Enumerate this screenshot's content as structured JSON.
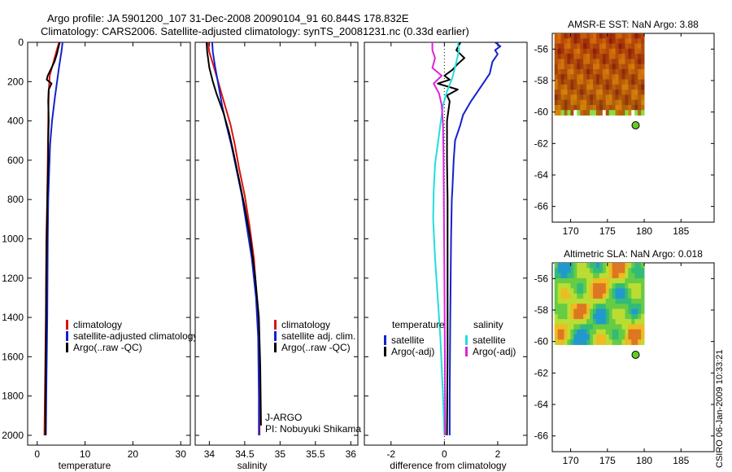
{
  "header": {
    "title_line1": "Argo profile: JA 5901200_107 31-Dec-2008 20090104_91 60.844S 178.832E",
    "title_line2": "Climatology: CARS2006. Satellite-adjusted climatology: synTS_20081231.nc (0.33d earlier)"
  },
  "side_label": "CSIRO 06-Jan-2009 10:33:21",
  "colors": {
    "climatology": "#dd1111",
    "satellite": "#1122cc",
    "argo": "#000000",
    "sal_satellite": "#22dddd",
    "sal_argo": "#dd22dd",
    "float_marker": "#66cc22"
  },
  "chart_data": [
    {
      "id": "temperature",
      "type": "line",
      "xlabel": "temperature",
      "ylabel": "",
      "xlim": [
        -2,
        32
      ],
      "ylim": [
        2050,
        0
      ],
      "xticks": [
        0,
        10,
        20,
        30
      ],
      "yticks": [
        0,
        200,
        400,
        600,
        800,
        1000,
        1200,
        1400,
        1600,
        1800,
        2000
      ],
      "series": [
        {
          "name": "climatology",
          "color": "#dd1111",
          "x": [
            4.6,
            4.2,
            3.4,
            2.6,
            2.4,
            2.3,
            2.2,
            2.1,
            1.9,
            1.8,
            1.6,
            1.5
          ],
          "y": [
            0,
            30,
            100,
            170,
            250,
            400,
            600,
            800,
            1000,
            1400,
            1800,
            2000
          ]
        },
        {
          "name": "satellite-adjusted climatology",
          "color": "#1122cc",
          "x": [
            5.3,
            5.1,
            4.6,
            3.7,
            3.1,
            2.7,
            2.5,
            2.3,
            2.2,
            2.1,
            1.9,
            1.8
          ],
          "y": [
            0,
            40,
            120,
            280,
            400,
            520,
            650,
            800,
            1000,
            1400,
            1800,
            2000
          ]
        },
        {
          "name": "Argo(..raw -QC)",
          "color": "#000000",
          "x": [
            4.7,
            4.4,
            4.1,
            3.6,
            2.2,
            2.0,
            3.0,
            2.4,
            2.3,
            2.4,
            2.3,
            2.3,
            2.2,
            2.1,
            2.0,
            1.9,
            1.8,
            1.7,
            1.7
          ],
          "y": [
            0,
            30,
            60,
            100,
            170,
            190,
            210,
            240,
            300,
            400,
            500,
            600,
            700,
            800,
            1000,
            1200,
            1500,
            1800,
            2000
          ]
        }
      ],
      "legend": [
        "climatology",
        "satellite-adjusted climatology",
        "Argo(..raw -QC)"
      ],
      "legend_position": "lower-right"
    },
    {
      "id": "salinity",
      "type": "line",
      "xlabel": "salinity",
      "ylabel": "",
      "xlim": [
        33.8,
        36.1
      ],
      "ylim": [
        2050,
        0
      ],
      "xticks": [
        34,
        34.5,
        35,
        35.5,
        36
      ],
      "xtick_labels": [
        "34",
        "34.5",
        "35",
        "35.5",
        "36"
      ],
      "series": [
        {
          "name": "climatology",
          "color": "#dd1111",
          "x": [
            33.98,
            34.0,
            34.06,
            34.14,
            34.22,
            34.3,
            34.36,
            34.42,
            34.5,
            34.57,
            34.63,
            34.67,
            34.7,
            34.71,
            34.71
          ],
          "y": [
            0,
            50,
            120,
            220,
            320,
            420,
            520,
            640,
            780,
            940,
            1100,
            1300,
            1500,
            1800,
            2000
          ]
        },
        {
          "name": "satellite adj. clim.",
          "color": "#1122cc",
          "x": [
            34.04,
            34.05,
            34.08,
            34.13,
            34.18,
            34.24,
            34.31,
            34.38,
            34.46,
            34.53,
            34.6,
            34.66,
            34.69,
            34.7,
            34.7
          ],
          "y": [
            0,
            50,
            120,
            220,
            320,
            420,
            520,
            640,
            780,
            940,
            1100,
            1300,
            1500,
            1800,
            2000
          ]
        },
        {
          "name": "Argo(..raw -QC)",
          "color": "#000000",
          "x": [
            33.96,
            33.97,
            34.0,
            34.05,
            34.1,
            34.2,
            34.28,
            34.34,
            34.41,
            34.5,
            34.58,
            34.65,
            34.7,
            34.72,
            34.73
          ],
          "y": [
            0,
            50,
            130,
            200,
            260,
            360,
            460,
            560,
            680,
            840,
            1000,
            1200,
            1400,
            1650,
            1950
          ]
        }
      ],
      "legend": [
        "climatology",
        "satellite adj. clim.",
        "Argo(..raw -QC)"
      ],
      "legend_position": "lower-right",
      "annotations": [
        "J-ARGO",
        "PI: Nobuyuki Shikama"
      ]
    },
    {
      "id": "difference",
      "type": "line",
      "xlabel": "difference from climatology",
      "ylabel": "",
      "xlim": [
        -3,
        3.1
      ],
      "ylim": [
        2050,
        0
      ],
      "xticks": [
        -2,
        0,
        2
      ],
      "series": [
        {
          "name": "temperature satellite",
          "color": "#1122cc",
          "x": [
            1.9,
            2.1,
            1.9,
            2.0,
            1.8,
            1.7,
            1.5,
            1.2,
            1.0,
            0.7,
            0.6,
            0.4,
            0.35,
            0.3,
            0.28,
            0.25,
            0.22,
            0.2,
            0.2
          ],
          "y": [
            0,
            20,
            40,
            60,
            100,
            160,
            200,
            260,
            300,
            370,
            420,
            500,
            600,
            750,
            800,
            1000,
            1400,
            1800,
            2000
          ]
        },
        {
          "name": "temperature Argo(-adj)",
          "color": "#000000",
          "x": [
            0.6,
            0.45,
            0.75,
            0.5,
            0.3,
            0.0,
            0.2,
            -0.25,
            0.5,
            0.1,
            0.2,
            0.1,
            0.1,
            0.12,
            0.12,
            0.12,
            0.1
          ],
          "y": [
            0,
            40,
            80,
            110,
            140,
            170,
            190,
            210,
            240,
            270,
            300,
            400,
            600,
            800,
            1200,
            1600,
            2000
          ]
        },
        {
          "name": "salinity satellite",
          "color": "#22dddd",
          "x": [
            0.5,
            0.55,
            0.45,
            0.3,
            0.1,
            -0.05,
            -0.15,
            -0.25,
            -0.35,
            -0.4,
            -0.42,
            -0.35,
            -0.25,
            -0.15,
            -0.05,
            0.0
          ],
          "y": [
            0,
            40,
            100,
            180,
            250,
            320,
            420,
            520,
            620,
            760,
            900,
            1100,
            1300,
            1500,
            1800,
            2000
          ]
        },
        {
          "name": "salinity Argo(-adj)",
          "color": "#dd22dd",
          "x": [
            -0.45,
            -0.45,
            -0.35,
            -0.45,
            -0.1,
            -0.4,
            -0.2,
            -0.1,
            -0.05,
            -0.03,
            -0.02,
            0.0,
            0.02,
            0.03
          ],
          "y": [
            0,
            40,
            80,
            130,
            170,
            210,
            260,
            320,
            420,
            600,
            800,
            1200,
            1600,
            2000
          ]
        }
      ],
      "legend_headers": [
        "temperature",
        "salinity"
      ],
      "legend": [
        {
          "label": "satellite",
          "color": "#1122cc"
        },
        {
          "label": "Argo(-adj)",
          "color": "#000000"
        },
        {
          "label": "satellite",
          "color": "#22dddd"
        },
        {
          "label": "Argo(-adj)",
          "color": "#dd22dd"
        }
      ],
      "reference_line": {
        "x": 0,
        "style": "dotted"
      }
    },
    {
      "id": "sst_map",
      "type": "heatmap",
      "title": "AMSR-E SST: NaN Argo: 3.88",
      "xlim": [
        167.5,
        189.5
      ],
      "ylim": [
        -67,
        -55
      ],
      "xticks": [
        170,
        175,
        180,
        185
      ],
      "yticks": [
        -56,
        -58,
        -60,
        -62,
        -64,
        -66
      ],
      "data_extent": {
        "lon": [
          167.8,
          180.0
        ],
        "lat": [
          -60.2,
          -55.0
        ]
      },
      "float_position": {
        "lon": 178.832,
        "lat": -60.844
      }
    },
    {
      "id": "sla_map",
      "type": "heatmap",
      "title": "Altimetric SLA: NaN Argo: 0.018",
      "xlim": [
        167.5,
        189.5
      ],
      "ylim": [
        -67,
        -55
      ],
      "xticks": [
        170,
        175,
        180,
        185
      ],
      "yticks": [
        -56,
        -58,
        -60,
        -62,
        -64,
        -66
      ],
      "data_extent": {
        "lon": [
          167.8,
          180.0
        ],
        "lat": [
          -60.2,
          -55.0
        ]
      },
      "float_position": {
        "lon": 178.832,
        "lat": -60.844
      }
    }
  ]
}
